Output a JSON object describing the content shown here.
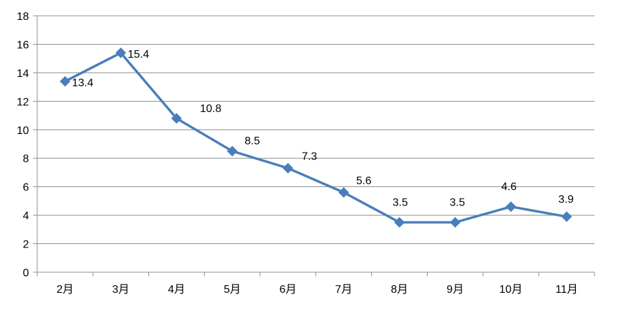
{
  "chart_data": {
    "type": "line",
    "categories": [
      "2月",
      "3月",
      "4月",
      "5月",
      "6月",
      "7月",
      "8月",
      "9月",
      "10月",
      "11月"
    ],
    "series": [
      {
        "values": [
          13.4,
          15.4,
          10.8,
          8.5,
          7.3,
          5.6,
          3.5,
          3.5,
          4.6,
          3.9
        ]
      }
    ],
    "data_labels": [
      "13.4",
      "15.4",
      "10.8",
      "8.5",
      "7.3",
      "5.6",
      "3.5",
      "3.5",
      "4.6",
      "3.9"
    ],
    "y_ticks": [
      "0",
      "2",
      "4",
      "6",
      "8",
      "10",
      "12",
      "14",
      "16",
      "18"
    ],
    "ylim": [
      0,
      18
    ],
    "grid": true,
    "legend": "none",
    "marker": "diamond",
    "colors": {
      "series": "#4a7ebb",
      "grid": "#8c8c8c"
    }
  }
}
